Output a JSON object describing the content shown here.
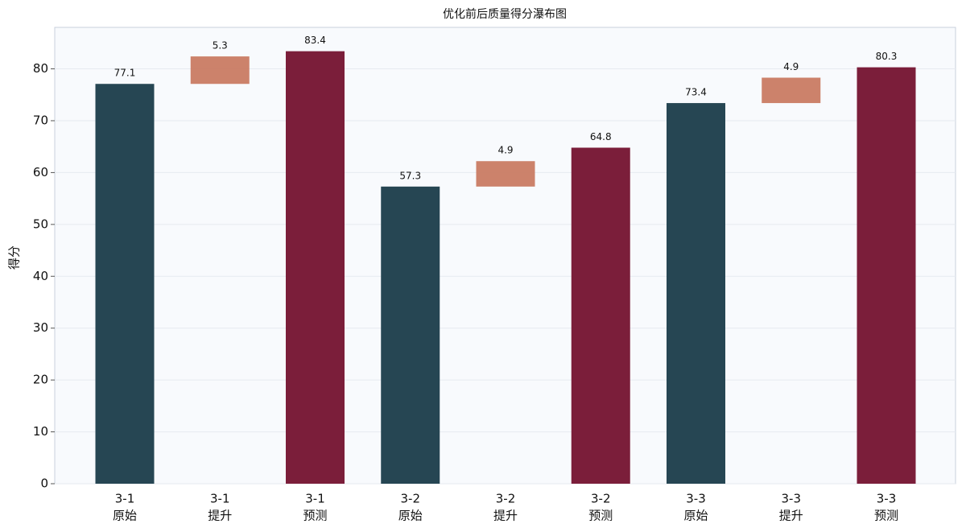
{
  "chart_data": {
    "type": "waterfall",
    "title": "优化前后质量得分瀑布图",
    "ylabel": "得分",
    "groups": [
      {
        "name": "3-1",
        "labels": [
          "原始",
          "提升",
          "预测"
        ],
        "values": [
          77.1,
          5.3,
          83.4
        ]
      },
      {
        "name": "3-2",
        "labels": [
          "原始",
          "提升",
          "预测"
        ],
        "values": [
          57.3,
          4.9,
          64.8
        ]
      },
      {
        "name": "3-3",
        "labels": [
          "原始",
          "提升",
          "预测"
        ],
        "values": [
          73.4,
          4.9,
          80.3
        ]
      }
    ],
    "colors": [
      "#264653",
      "#c97b63",
      "#7b1e3a"
    ],
    "ylim": [
      0,
      88
    ],
    "yticks": [
      0,
      10,
      20,
      30,
      40,
      50,
      60,
      70,
      80
    ],
    "grid": true
  }
}
